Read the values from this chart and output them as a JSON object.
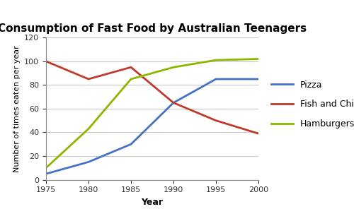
{
  "title": "Consumption of Fast Food by Australian Teenagers",
  "xlabel": "Year",
  "ylabel": "Number of times eaten per year",
  "years": [
    1975,
    1980,
    1985,
    1990,
    1995,
    2000
  ],
  "pizza": [
    5,
    15,
    30,
    65,
    85,
    85
  ],
  "fish_and_chips": [
    100,
    85,
    95,
    65,
    50,
    39
  ],
  "hamburgers": [
    10,
    43,
    85,
    95,
    101,
    102
  ],
  "pizza_color": "#4472c4",
  "fish_color": "#c0392b",
  "hamburgers_color": "#8db600",
  "ylim": [
    0,
    120
  ],
  "yticks": [
    0,
    20,
    40,
    60,
    80,
    100,
    120
  ],
  "xticks": [
    1975,
    1980,
    1985,
    1990,
    1995,
    2000
  ],
  "legend_labels": [
    "Pizza",
    "Fish and Chips",
    "Hamburgers"
  ],
  "background_color": "#ffffff",
  "grid_color": "#c8c8c8",
  "title_fontsize": 11,
  "axis_label_fontsize": 9,
  "tick_fontsize": 8,
  "legend_fontsize": 9,
  "linewidth": 2.0
}
